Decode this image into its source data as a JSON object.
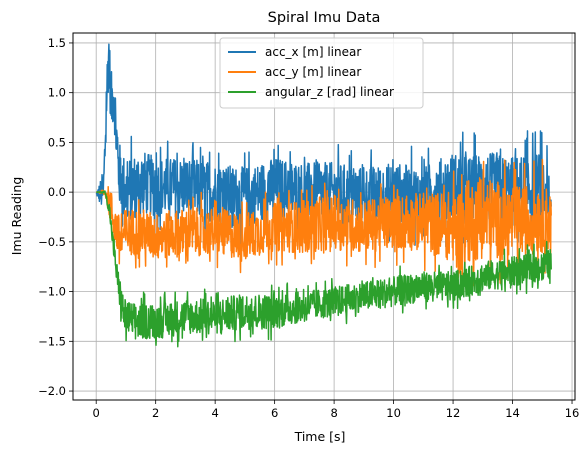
{
  "chart_data": {
    "type": "line",
    "title": "Spiral Imu Data",
    "xlabel": "Time [s]",
    "ylabel": "Imu Reading",
    "xlim": [
      -0.78,
      16.1
    ],
    "ylim": [
      -2.09,
      1.6
    ],
    "xticks": [
      0,
      2,
      4,
      6,
      8,
      10,
      12,
      14,
      16
    ],
    "xtick_labels": [
      "0",
      "2",
      "4",
      "6",
      "8",
      "10",
      "12",
      "14",
      "16"
    ],
    "yticks": [
      -2.0,
      -1.5,
      -1.0,
      -0.5,
      0.0,
      0.5,
      1.0,
      1.5
    ],
    "ytick_labels": [
      "−2.0",
      "−1.5",
      "−1.0",
      "−0.5",
      "0.0",
      "0.5",
      "1.0",
      "1.5"
    ],
    "grid": true,
    "legend_position": "upper-center",
    "series": [
      {
        "name": "acc_x [m] linear",
        "color": "#1f77b4",
        "x": [
          0,
          0.25,
          0.35,
          0.42,
          0.5,
          0.6,
          0.75,
          1.0,
          1.5,
          2,
          3,
          4,
          5,
          6,
          7,
          8,
          9,
          10,
          11,
          12,
          12.5,
          13,
          14,
          15,
          15.3
        ],
        "y": [
          -0.02,
          0.0,
          0.95,
          1.42,
          0.9,
          1.0,
          0.2,
          0.0,
          0.1,
          0.05,
          0.05,
          0.0,
          -0.05,
          0.05,
          0.0,
          0.0,
          -0.05,
          0.0,
          -0.05,
          0.05,
          0.0,
          0.05,
          0.0,
          0.05,
          -0.2
        ],
        "band": [
          0,
          0.4,
          0.5,
          0.55,
          0.5,
          0.5,
          0.55,
          0.55,
          0.55,
          0.5,
          0.5,
          0.5,
          0.5,
          0.5,
          0.5,
          0.5,
          0.5,
          0.5,
          0.5,
          0.6,
          0.6,
          0.6,
          0.6,
          0.6,
          0.5
        ]
      },
      {
        "name": "acc_y [m] linear",
        "color": "#ff7f0e",
        "x": [
          0,
          0.3,
          0.45,
          0.6,
          0.8,
          1.0,
          1.5,
          2,
          3,
          4,
          5,
          6,
          7,
          8,
          9,
          10,
          11,
          12,
          12.3,
          12.5,
          13,
          14,
          15,
          15.3
        ],
        "y": [
          0.0,
          0.0,
          -0.1,
          -0.3,
          -0.5,
          -0.4,
          -0.4,
          -0.45,
          -0.4,
          -0.4,
          -0.45,
          -0.35,
          -0.35,
          -0.3,
          -0.35,
          -0.3,
          -0.3,
          -0.35,
          -0.4,
          -0.3,
          -0.25,
          -0.3,
          -0.25,
          -0.3
        ],
        "band": [
          0,
          0.03,
          0.3,
          0.35,
          0.4,
          0.4,
          0.4,
          0.4,
          0.4,
          0.4,
          0.4,
          0.4,
          0.45,
          0.45,
          0.45,
          0.45,
          0.5,
          0.6,
          0.8,
          0.7,
          0.7,
          0.6,
          0.6,
          0.5
        ]
      },
      {
        "name": "angular_z [rad] linear",
        "color": "#2ca02c",
        "x": [
          0,
          0.3,
          0.45,
          0.6,
          0.75,
          0.95,
          1.3,
          2,
          3,
          4,
          5,
          6,
          7,
          8,
          9,
          10,
          11,
          12,
          13,
          14,
          15,
          15.3
        ],
        "y": [
          0.0,
          0.0,
          -0.2,
          -0.6,
          -0.95,
          -1.25,
          -1.3,
          -1.3,
          -1.25,
          -1.25,
          -1.2,
          -1.2,
          -1.15,
          -1.1,
          -1.05,
          -1.0,
          -0.95,
          -0.95,
          -0.85,
          -0.8,
          -0.75,
          -0.72
        ],
        "band": [
          0,
          0.02,
          0.1,
          0.15,
          0.25,
          0.3,
          0.3,
          0.3,
          0.3,
          0.3,
          0.3,
          0.3,
          0.25,
          0.25,
          0.25,
          0.25,
          0.25,
          0.25,
          0.25,
          0.25,
          0.25,
          0.25
        ]
      }
    ]
  }
}
